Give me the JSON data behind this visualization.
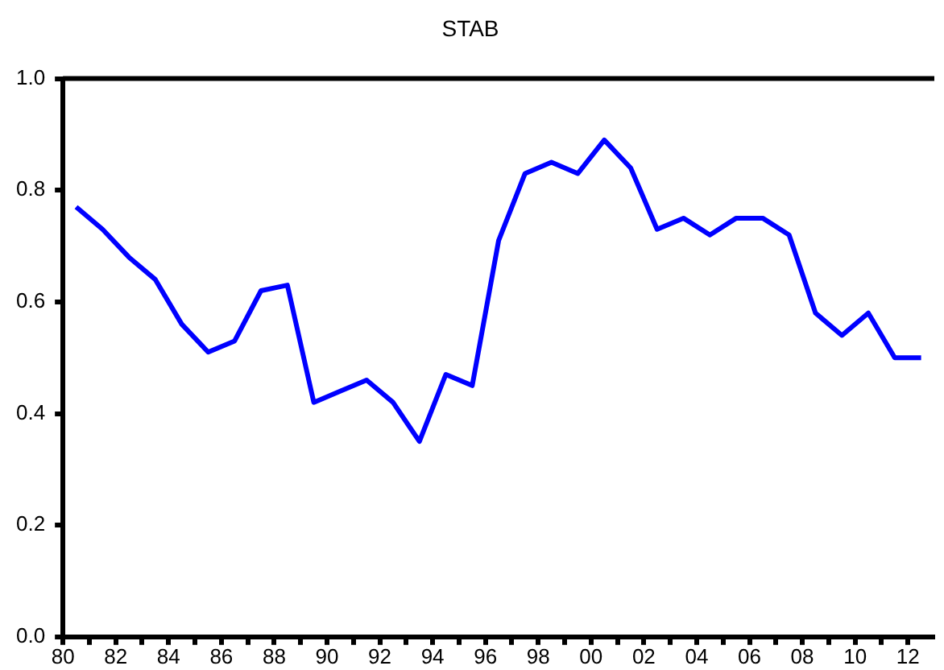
{
  "chart_data": {
    "type": "line",
    "title": "STAB",
    "x": [
      1980.5,
      1981.5,
      1982.5,
      1983.5,
      1984.5,
      1985.5,
      1986.5,
      1987.5,
      1988.5,
      1989.5,
      1990.5,
      1991.5,
      1992.5,
      1993.5,
      1994.5,
      1995.5,
      1996.5,
      1997.5,
      1998.5,
      1999.5,
      2000.5,
      2001.5,
      2002.5,
      2003.5,
      2004.5,
      2005.5,
      2006.5,
      2007.5,
      2008.5,
      2009.5,
      2010.5,
      2011.5,
      2012.5
    ],
    "series": [
      {
        "color": "#0000ff",
        "values": [
          0.77,
          0.73,
          0.68,
          0.64,
          0.56,
          0.51,
          0.53,
          0.62,
          0.63,
          0.42,
          0.44,
          0.46,
          0.42,
          0.35,
          0.47,
          0.45,
          0.71,
          0.83,
          0.85,
          0.83,
          0.89,
          0.84,
          0.73,
          0.75,
          0.72,
          0.75,
          0.75,
          0.72,
          0.58,
          0.54,
          0.58,
          0.5,
          0.5
        ]
      }
    ],
    "xlim": [
      1980,
      2013
    ],
    "xticks": [
      {
        "value": 1980,
        "label": "80"
      },
      {
        "value": 1981,
        "label": null
      },
      {
        "value": 1982,
        "label": "82"
      },
      {
        "value": 1983,
        "label": null
      },
      {
        "value": 1984,
        "label": "84"
      },
      {
        "value": 1985,
        "label": null
      },
      {
        "value": 1986,
        "label": "86"
      },
      {
        "value": 1987,
        "label": null
      },
      {
        "value": 1988,
        "label": "88"
      },
      {
        "value": 1989,
        "label": null
      },
      {
        "value": 1990,
        "label": "90"
      },
      {
        "value": 1991,
        "label": null
      },
      {
        "value": 1992,
        "label": "92"
      },
      {
        "value": 1993,
        "label": null
      },
      {
        "value": 1994,
        "label": "94"
      },
      {
        "value": 1995,
        "label": null
      },
      {
        "value": 1996,
        "label": "96"
      },
      {
        "value": 1997,
        "label": null
      },
      {
        "value": 1998,
        "label": "98"
      },
      {
        "value": 1999,
        "label": null
      },
      {
        "value": 2000,
        "label": "00"
      },
      {
        "value": 2001,
        "label": null
      },
      {
        "value": 2002,
        "label": "02"
      },
      {
        "value": 2003,
        "label": null
      },
      {
        "value": 2004,
        "label": "04"
      },
      {
        "value": 2005,
        "label": null
      },
      {
        "value": 2006,
        "label": "06"
      },
      {
        "value": 2007,
        "label": null
      },
      {
        "value": 2008,
        "label": "08"
      },
      {
        "value": 2009,
        "label": null
      },
      {
        "value": 2010,
        "label": "10"
      },
      {
        "value": 2011,
        "label": null
      },
      {
        "value": 2012,
        "label": "12"
      }
    ],
    "ylim": [
      0,
      1
    ],
    "yticks": [
      {
        "value": 0,
        "label": "0.0"
      },
      {
        "value": 0.2,
        "label": "0.2"
      },
      {
        "value": 0.4,
        "label": "0.4"
      },
      {
        "value": 0.6,
        "label": "0.6"
      },
      {
        "value": 0.8,
        "label": "0.8"
      },
      {
        "value": 1,
        "label": "1.0"
      }
    ],
    "grid": false,
    "legend": false,
    "marker": "none",
    "line_style": "solid"
  }
}
